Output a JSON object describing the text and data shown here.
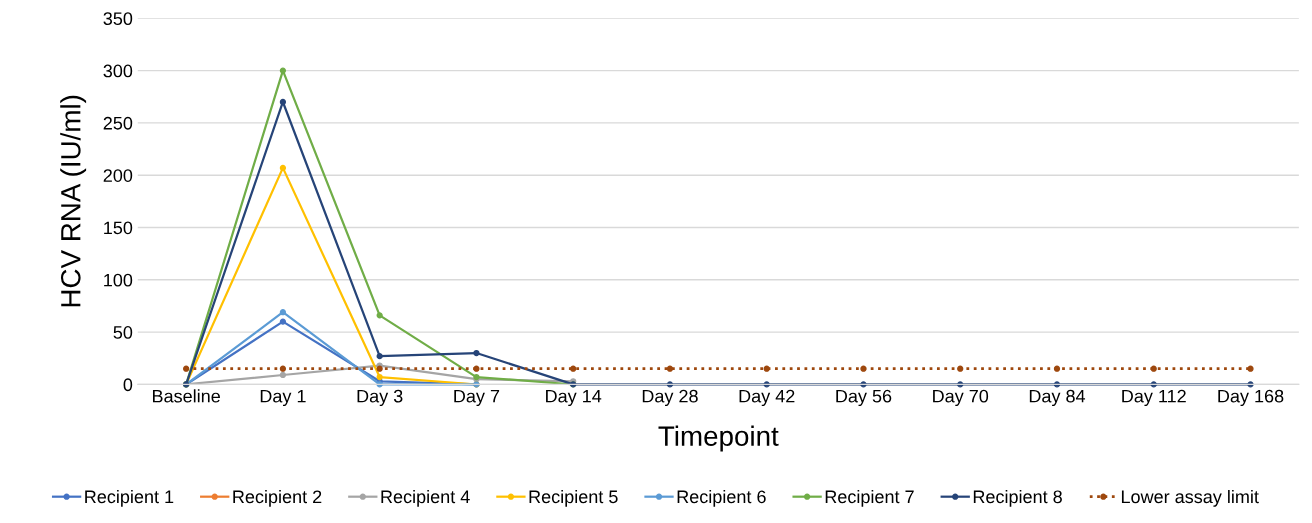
{
  "chart_data": {
    "type": "line",
    "xlabel": "Timepoint",
    "ylabel": "HCV RNA (IU/ml)",
    "categories": [
      "Baseline",
      "Day 1",
      "Day 3",
      "Day 7",
      "Day 14",
      "Day 28",
      "Day 42",
      "Day 56",
      "Day 70",
      "Day 84",
      "Day 112",
      "Day 168"
    ],
    "ylim": [
      0,
      350
    ],
    "yticks": [
      0,
      50,
      100,
      150,
      200,
      250,
      300,
      350
    ],
    "grid": "y",
    "legend": "bottom",
    "marker": "circle",
    "series": [
      {
        "name": "Recipient 1",
        "color": "#4472c4",
        "values": [
          0,
          60,
          3,
          0,
          null,
          null,
          null,
          null,
          null,
          null,
          null,
          null
        ]
      },
      {
        "name": "Recipient 2",
        "color": "#ed7d31",
        "values": [
          null,
          null,
          null,
          null,
          null,
          null,
          null,
          null,
          null,
          null,
          null,
          null
        ]
      },
      {
        "name": "Recipient 4",
        "color": "#a5a5a5",
        "values": [
          0,
          9,
          18,
          5,
          3,
          null,
          null,
          null,
          null,
          null,
          null,
          null
        ]
      },
      {
        "name": "Recipient 5",
        "color": "#ffc000",
        "values": [
          0,
          207,
          7,
          0,
          null,
          null,
          null,
          null,
          null,
          null,
          null,
          null
        ]
      },
      {
        "name": "Recipient 6",
        "color": "#5b9bd5",
        "values": [
          0,
          69,
          0,
          0,
          null,
          null,
          null,
          null,
          null,
          null,
          null,
          null
        ]
      },
      {
        "name": "Recipient 7",
        "color": "#70ad47",
        "values": [
          0,
          300,
          66,
          7,
          0,
          null,
          null,
          null,
          null,
          null,
          null,
          null
        ]
      },
      {
        "name": "Recipient 8",
        "color": "#264478",
        "values": [
          0,
          270,
          27,
          30,
          0,
          0,
          0,
          0,
          0,
          0,
          0,
          0
        ]
      },
      {
        "name": "Lower assay limit",
        "color": "#9e480e",
        "line_style": "dotted",
        "values": [
          15,
          15,
          15,
          15,
          15,
          15,
          15,
          15,
          15,
          15,
          15,
          15
        ]
      }
    ]
  }
}
